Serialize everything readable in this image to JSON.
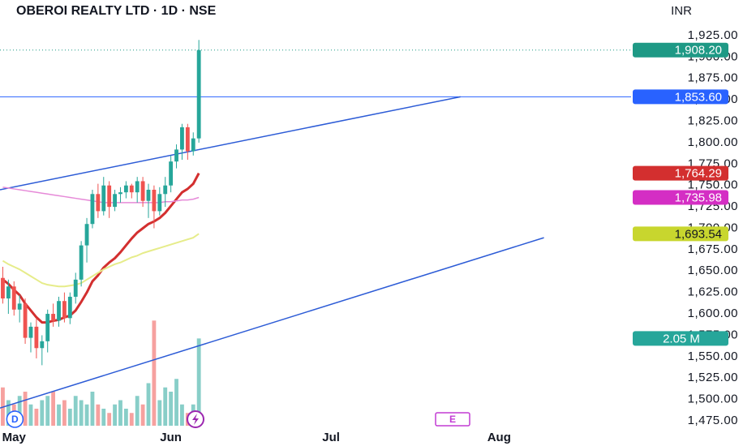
{
  "chart_data": {
    "type": "candlestick",
    "title": "OBEROI REALTY LTD · 1D · NSE",
    "currency": "INR",
    "up_color": "#26a69a",
    "down_color": "#ef5350",
    "x": [
      0,
      1,
      2,
      3,
      4,
      5,
      6,
      7,
      8,
      9,
      10,
      11,
      12,
      13,
      14,
      15,
      16,
      17,
      18,
      19,
      20,
      21,
      22,
      23,
      24,
      25,
      26,
      27,
      28,
      29,
      30,
      31,
      32,
      33,
      34,
      35
    ],
    "xlim": [
      -0.5,
      111
    ],
    "xticks": [
      {
        "value": 2,
        "label": "May"
      },
      {
        "value": 30,
        "label": "Jun"
      },
      {
        "value": 58.6,
        "label": "Jul"
      },
      {
        "value": 88.6,
        "label": "Aug"
      }
    ],
    "ylim": [
      1464,
      1948
    ],
    "yticks": [
      {
        "value": 1475,
        "label": "1,475.00"
      },
      {
        "value": 1500,
        "label": "1,500.00"
      },
      {
        "value": 1525,
        "label": "1,525.00"
      },
      {
        "value": 1550,
        "label": "1,550.00"
      },
      {
        "value": 1575,
        "label": "1,575.00"
      },
      {
        "value": 1600,
        "label": "1,600.00"
      },
      {
        "value": 1625,
        "label": "1,625.00"
      },
      {
        "value": 1650,
        "label": "1,650.00"
      },
      {
        "value": 1675,
        "label": "1,675.00"
      },
      {
        "value": 1700,
        "label": "1,700.00"
      },
      {
        "value": 1725,
        "label": "1,725.00"
      },
      {
        "value": 1750,
        "label": "1,750.00"
      },
      {
        "value": 1775,
        "label": "1,775.00"
      },
      {
        "value": 1800,
        "label": "1,800.00"
      },
      {
        "value": 1825,
        "label": "1,825.00"
      },
      {
        "value": 1850,
        "label": "1,850.00"
      },
      {
        "value": 1875,
        "label": "1,875.00"
      },
      {
        "value": 1900,
        "label": "1,900.00"
      },
      {
        "value": 1925,
        "label": "1,925.00"
      }
    ],
    "ohlc": [
      [
        1642,
        1655,
        1612,
        1618
      ],
      [
        1618,
        1640,
        1600,
        1632
      ],
      [
        1632,
        1638,
        1598,
        1605
      ],
      [
        1605,
        1622,
        1590,
        1612
      ],
      [
        1612,
        1618,
        1565,
        1572
      ],
      [
        1572,
        1590,
        1555,
        1585
      ],
      [
        1585,
        1595,
        1548,
        1560
      ],
      [
        1560,
        1575,
        1540,
        1568
      ],
      [
        1568,
        1605,
        1555,
        1600
      ],
      [
        1600,
        1612,
        1585,
        1592
      ],
      [
        1592,
        1620,
        1585,
        1615
      ],
      [
        1615,
        1625,
        1590,
        1595
      ],
      [
        1595,
        1625,
        1588,
        1620
      ],
      [
        1620,
        1648,
        1612,
        1640
      ],
      [
        1640,
        1685,
        1632,
        1680
      ],
      [
        1680,
        1712,
        1660,
        1705
      ],
      [
        1705,
        1745,
        1700,
        1740
      ],
      [
        1740,
        1752,
        1712,
        1720
      ],
      [
        1720,
        1760,
        1715,
        1750
      ],
      [
        1750,
        1755,
        1712,
        1725
      ],
      [
        1725,
        1745,
        1720,
        1740
      ],
      [
        1740,
        1748,
        1730,
        1742
      ],
      [
        1742,
        1755,
        1735,
        1750
      ],
      [
        1750,
        1752,
        1735,
        1742
      ],
      [
        1742,
        1760,
        1730,
        1755
      ],
      [
        1755,
        1760,
        1725,
        1732
      ],
      [
        1732,
        1752,
        1712,
        1745
      ],
      [
        1745,
        1750,
        1700,
        1720
      ],
      [
        1720,
        1748,
        1715,
        1740
      ],
      [
        1740,
        1760,
        1725,
        1750
      ],
      [
        1750,
        1785,
        1742,
        1778
      ],
      [
        1778,
        1798,
        1770,
        1792
      ],
      [
        1792,
        1822,
        1780,
        1818
      ],
      [
        1818,
        1822,
        1780,
        1790
      ],
      [
        1790,
        1812,
        1785,
        1805
      ],
      [
        1805,
        1920,
        1800,
        1908.2
      ]
    ],
    "volume": [
      0.9,
      0.6,
      0.5,
      0.7,
      0.8,
      0.5,
      0.4,
      0.6,
      0.7,
      0.8,
      0.5,
      0.6,
      0.4,
      0.7,
      0.6,
      0.5,
      0.8,
      0.5,
      0.4,
      0.3,
      0.5,
      0.6,
      0.4,
      0.3,
      0.7,
      0.5,
      1.0,
      2.47,
      0.6,
      0.9,
      0.8,
      1.1,
      0.5,
      0.3,
      0.5,
      2.05
    ],
    "volume_ylim": [
      0,
      4
    ],
    "series": [
      {
        "color": "#d32f2f",
        "width": 3,
        "values": [
          1640,
          1635,
          1628,
          1622,
          1612,
          1604,
          1596,
          1590,
          1590,
          1592,
          1593,
          1596,
          1598,
          1604,
          1614,
          1625,
          1638,
          1645,
          1654,
          1660,
          1665,
          1672,
          1680,
          1688,
          1695,
          1700,
          1705,
          1708,
          1712,
          1718,
          1726,
          1734,
          1742,
          1746,
          1752,
          1764.29
        ]
      },
      {
        "color": "#e6ec8a",
        "width": 2,
        "values": [
          1662,
          1658,
          1655,
          1652,
          1648,
          1644,
          1640,
          1636,
          1634,
          1633,
          1632,
          1632,
          1633,
          1634,
          1636,
          1640,
          1644,
          1648,
          1652,
          1655,
          1658,
          1660,
          1663,
          1666,
          1668,
          1671,
          1673,
          1675,
          1677,
          1679,
          1681,
          1683,
          1685,
          1687,
          1689,
          1693.54
        ]
      },
      {
        "color": "#e68ad8",
        "width": 1.5,
        "values": [
          1748,
          1747,
          1746,
          1745,
          1744,
          1743,
          1742,
          1741,
          1740,
          1739,
          1738,
          1737,
          1736,
          1735,
          1734,
          1733,
          1732,
          1731,
          1730,
          1730,
          1730,
          1730,
          1730,
          1730,
          1730,
          1730,
          1730,
          1730,
          1730,
          1731,
          1731,
          1732,
          1733,
          1733,
          1734,
          1735.98
        ]
      }
    ],
    "trend_lines": [
      {
        "color": "#2c5bd6",
        "x": [
          -0.5,
          81.7
        ],
        "y": [
          1745,
          1853.6
        ]
      },
      {
        "color": "#2c5bd6",
        "x": [
          -0.5,
          96.6
        ],
        "y": [
          1490,
          1689
        ]
      }
    ],
    "price_labels": [
      {
        "value": 1908.2,
        "label": "1,908.20",
        "color": "#1e9985",
        "line": "dotted"
      },
      {
        "value": 1853.6,
        "label": "1,853.60",
        "color": "#2962ff",
        "line": "solid"
      },
      {
        "value": 1764.29,
        "label": "1,764.29",
        "color": "#d32f2f"
      },
      {
        "value": 1735.98,
        "label": "1,735.98",
        "color": "#d42ec4"
      },
      {
        "value": 1693.54,
        "label": "1,693.54",
        "color": "#c8d62e",
        "text_color": "#131722"
      }
    ],
    "volume_label": {
      "value": 2.05,
      "label": "2.05 M",
      "color": "#26a69a"
    },
    "events": [
      {
        "x": 1,
        "label": "D"
      },
      {
        "x": 80.3,
        "label": "E"
      }
    ]
  }
}
